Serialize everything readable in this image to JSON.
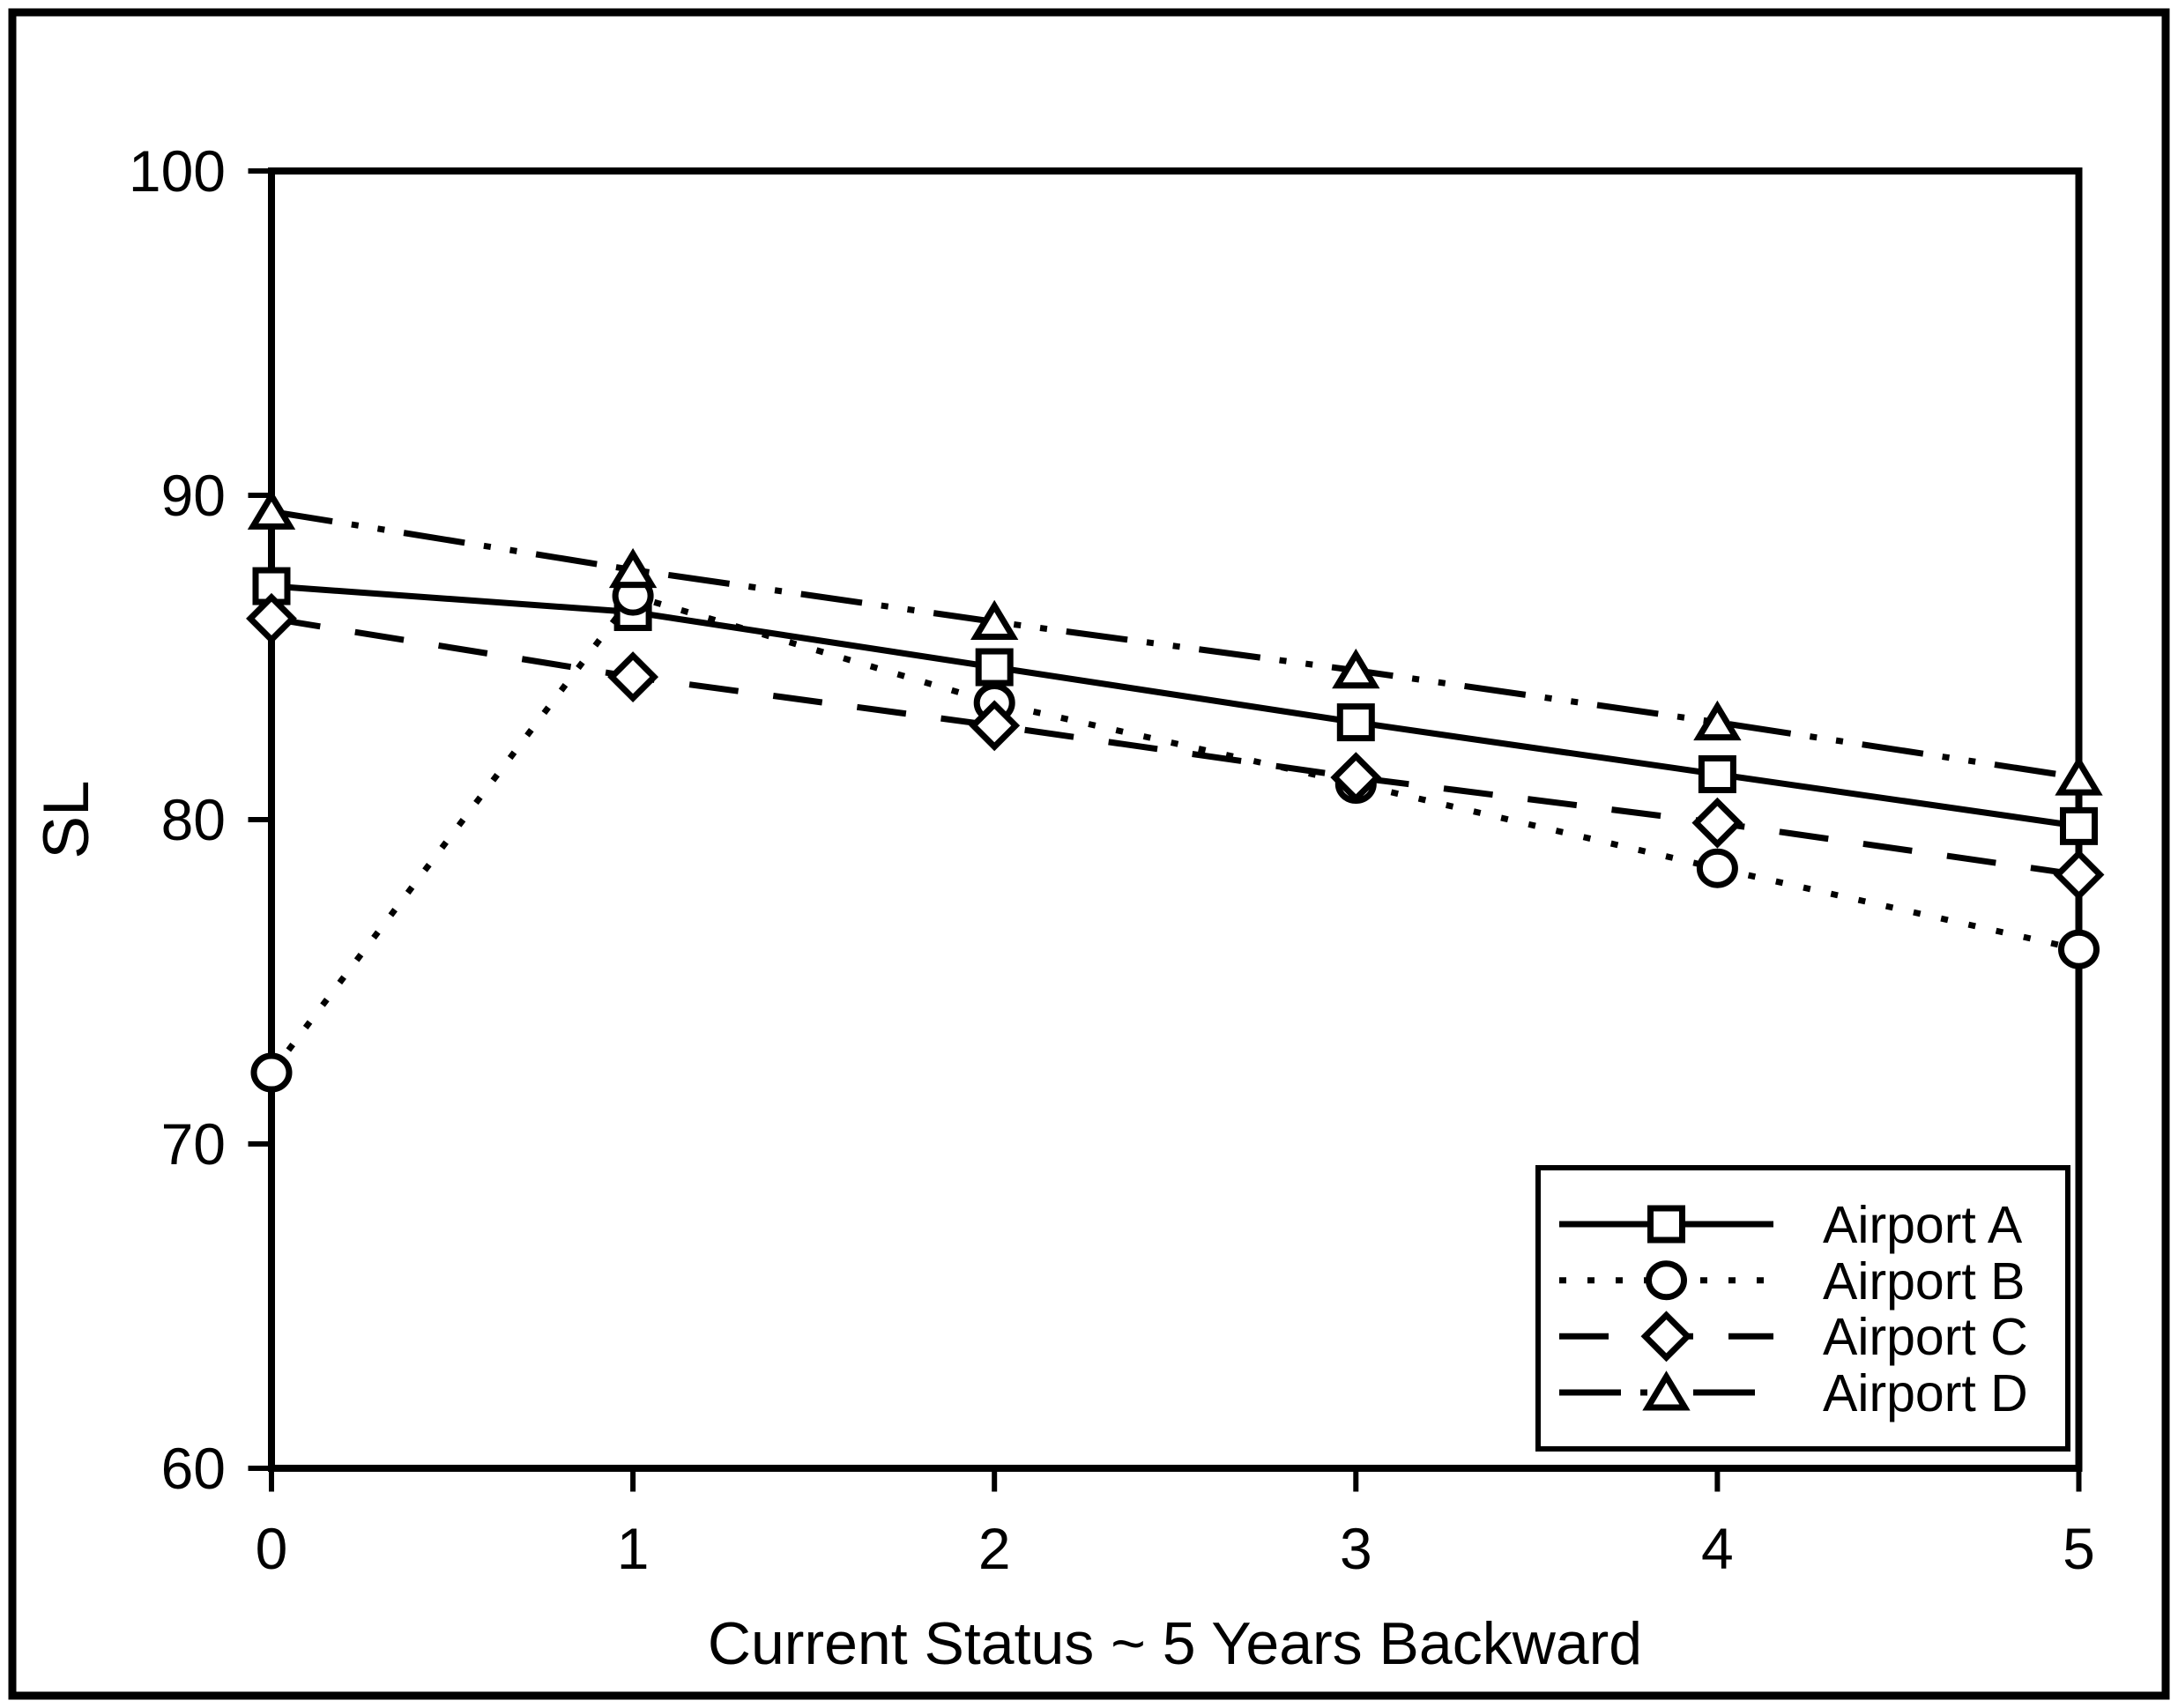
{
  "chart_data": {
    "type": "line",
    "title": "",
    "xlabel": "Current Status ~ 5 Years Backward",
    "ylabel": "SL",
    "x": [
      0,
      1,
      2,
      3,
      4,
      5
    ],
    "xlim": [
      0,
      5
    ],
    "ylim": [
      60,
      100
    ],
    "xticks": [
      0,
      1,
      2,
      3,
      4,
      5
    ],
    "yticks": [
      60,
      70,
      80,
      90,
      100
    ],
    "grid": false,
    "legend_position": "lower-right",
    "series": [
      {
        "name": "Airport A",
        "marker": "square",
        "line_style": "solid",
        "values": [
          87.2,
          86.4,
          84.7,
          83.0,
          81.4,
          79.8
        ]
      },
      {
        "name": "Airport B",
        "marker": "circle",
        "line_style": "dotted",
        "values": [
          72.2,
          86.9,
          83.6,
          81.1,
          78.5,
          76.0
        ]
      },
      {
        "name": "Airport C",
        "marker": "diamond",
        "line_style": "dashed",
        "values": [
          86.2,
          84.4,
          82.9,
          81.3,
          79.9,
          78.3
        ]
      },
      {
        "name": "Airport D",
        "marker": "triangle",
        "line_style": "dash-dot-dot",
        "values": [
          89.5,
          87.7,
          86.1,
          84.6,
          83.0,
          81.3
        ]
      }
    ],
    "colors": {
      "foreground": "#000000",
      "background": "#ffffff"
    }
  }
}
